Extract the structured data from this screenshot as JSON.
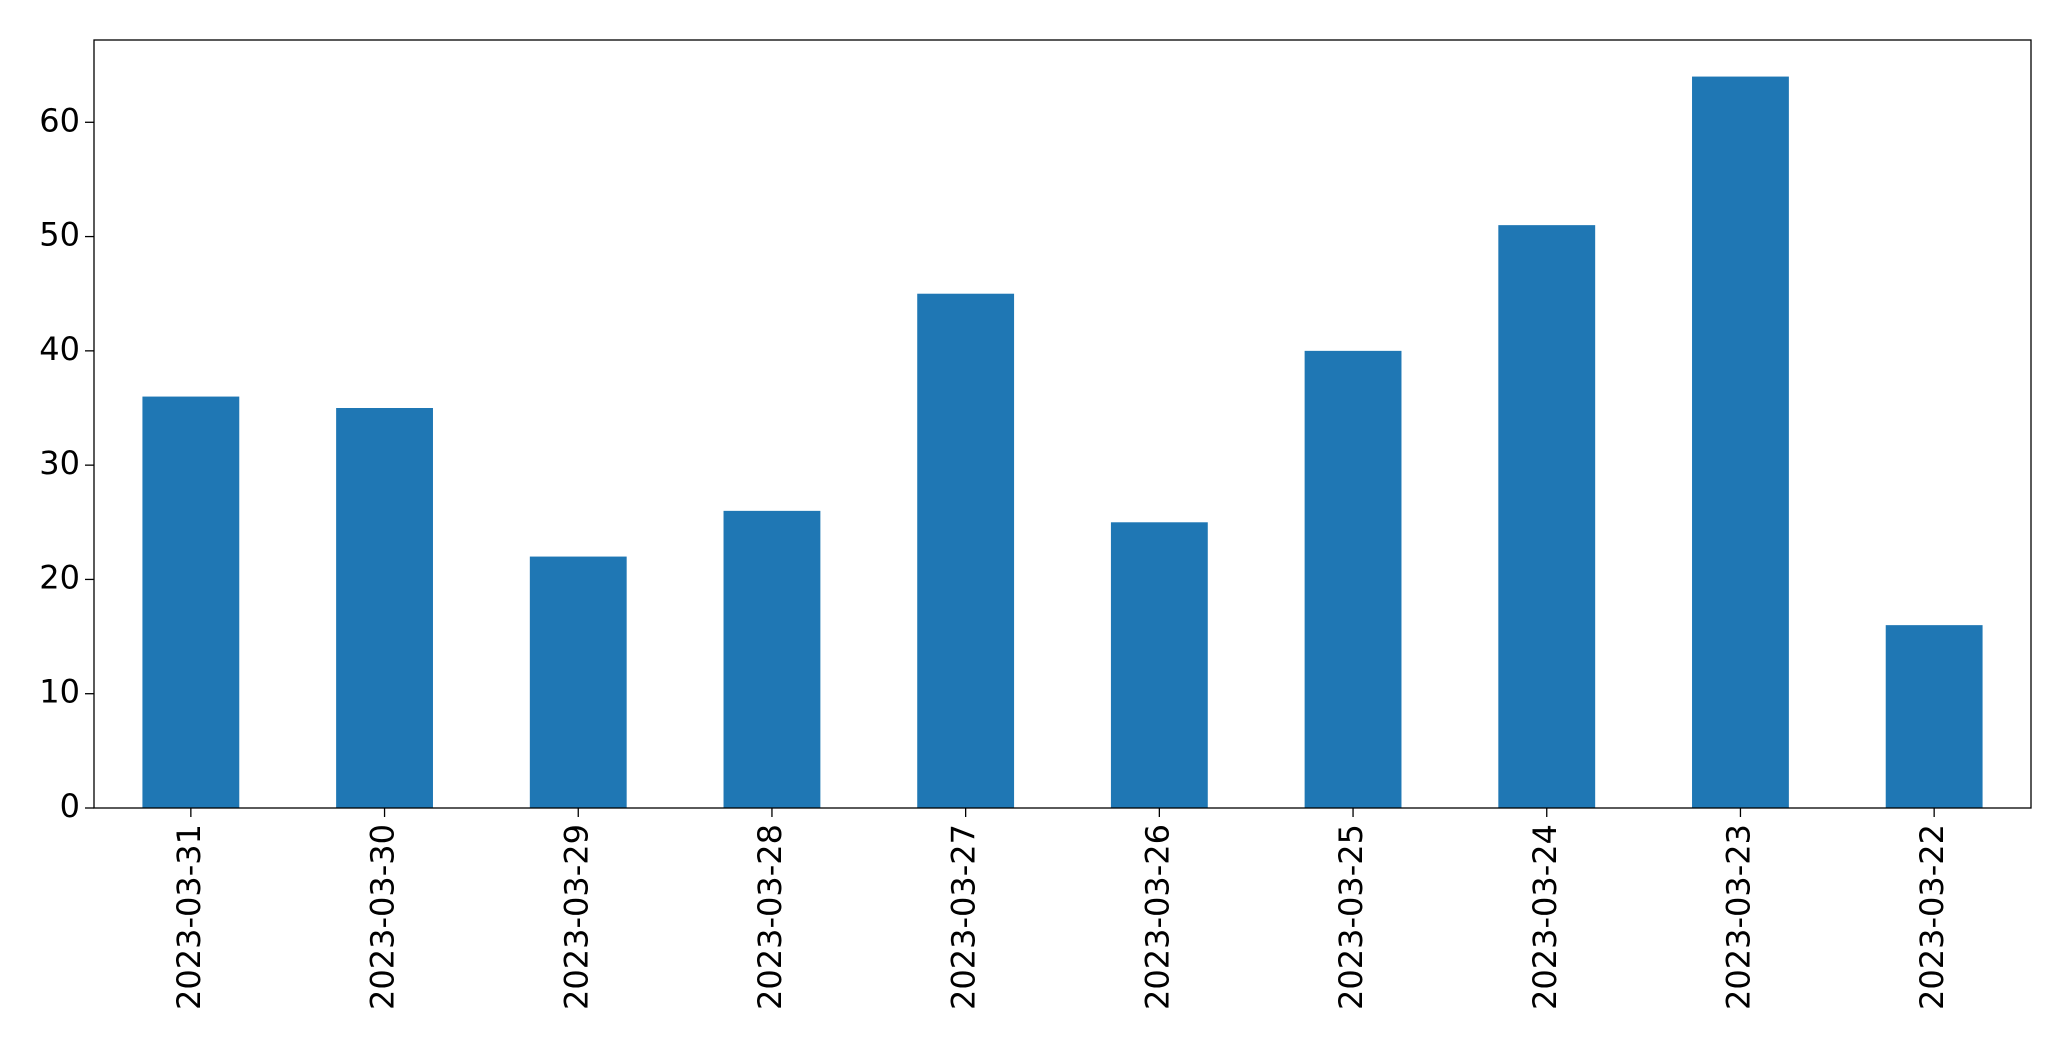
{
  "chart_data": {
    "type": "bar",
    "categories": [
      "2023-03-31",
      "2023-03-30",
      "2023-03-29",
      "2023-03-28",
      "2023-03-27",
      "2023-03-26",
      "2023-03-25",
      "2023-03-24",
      "2023-03-23",
      "2023-03-22"
    ],
    "values": [
      36,
      35,
      22,
      26,
      45,
      25,
      40,
      51,
      64,
      16
    ],
    "color": "#1f77b4",
    "ylim": [
      0,
      67.2
    ],
    "yticks": [
      0,
      10,
      20,
      30,
      40,
      50,
      60
    ],
    "grid": false
  }
}
